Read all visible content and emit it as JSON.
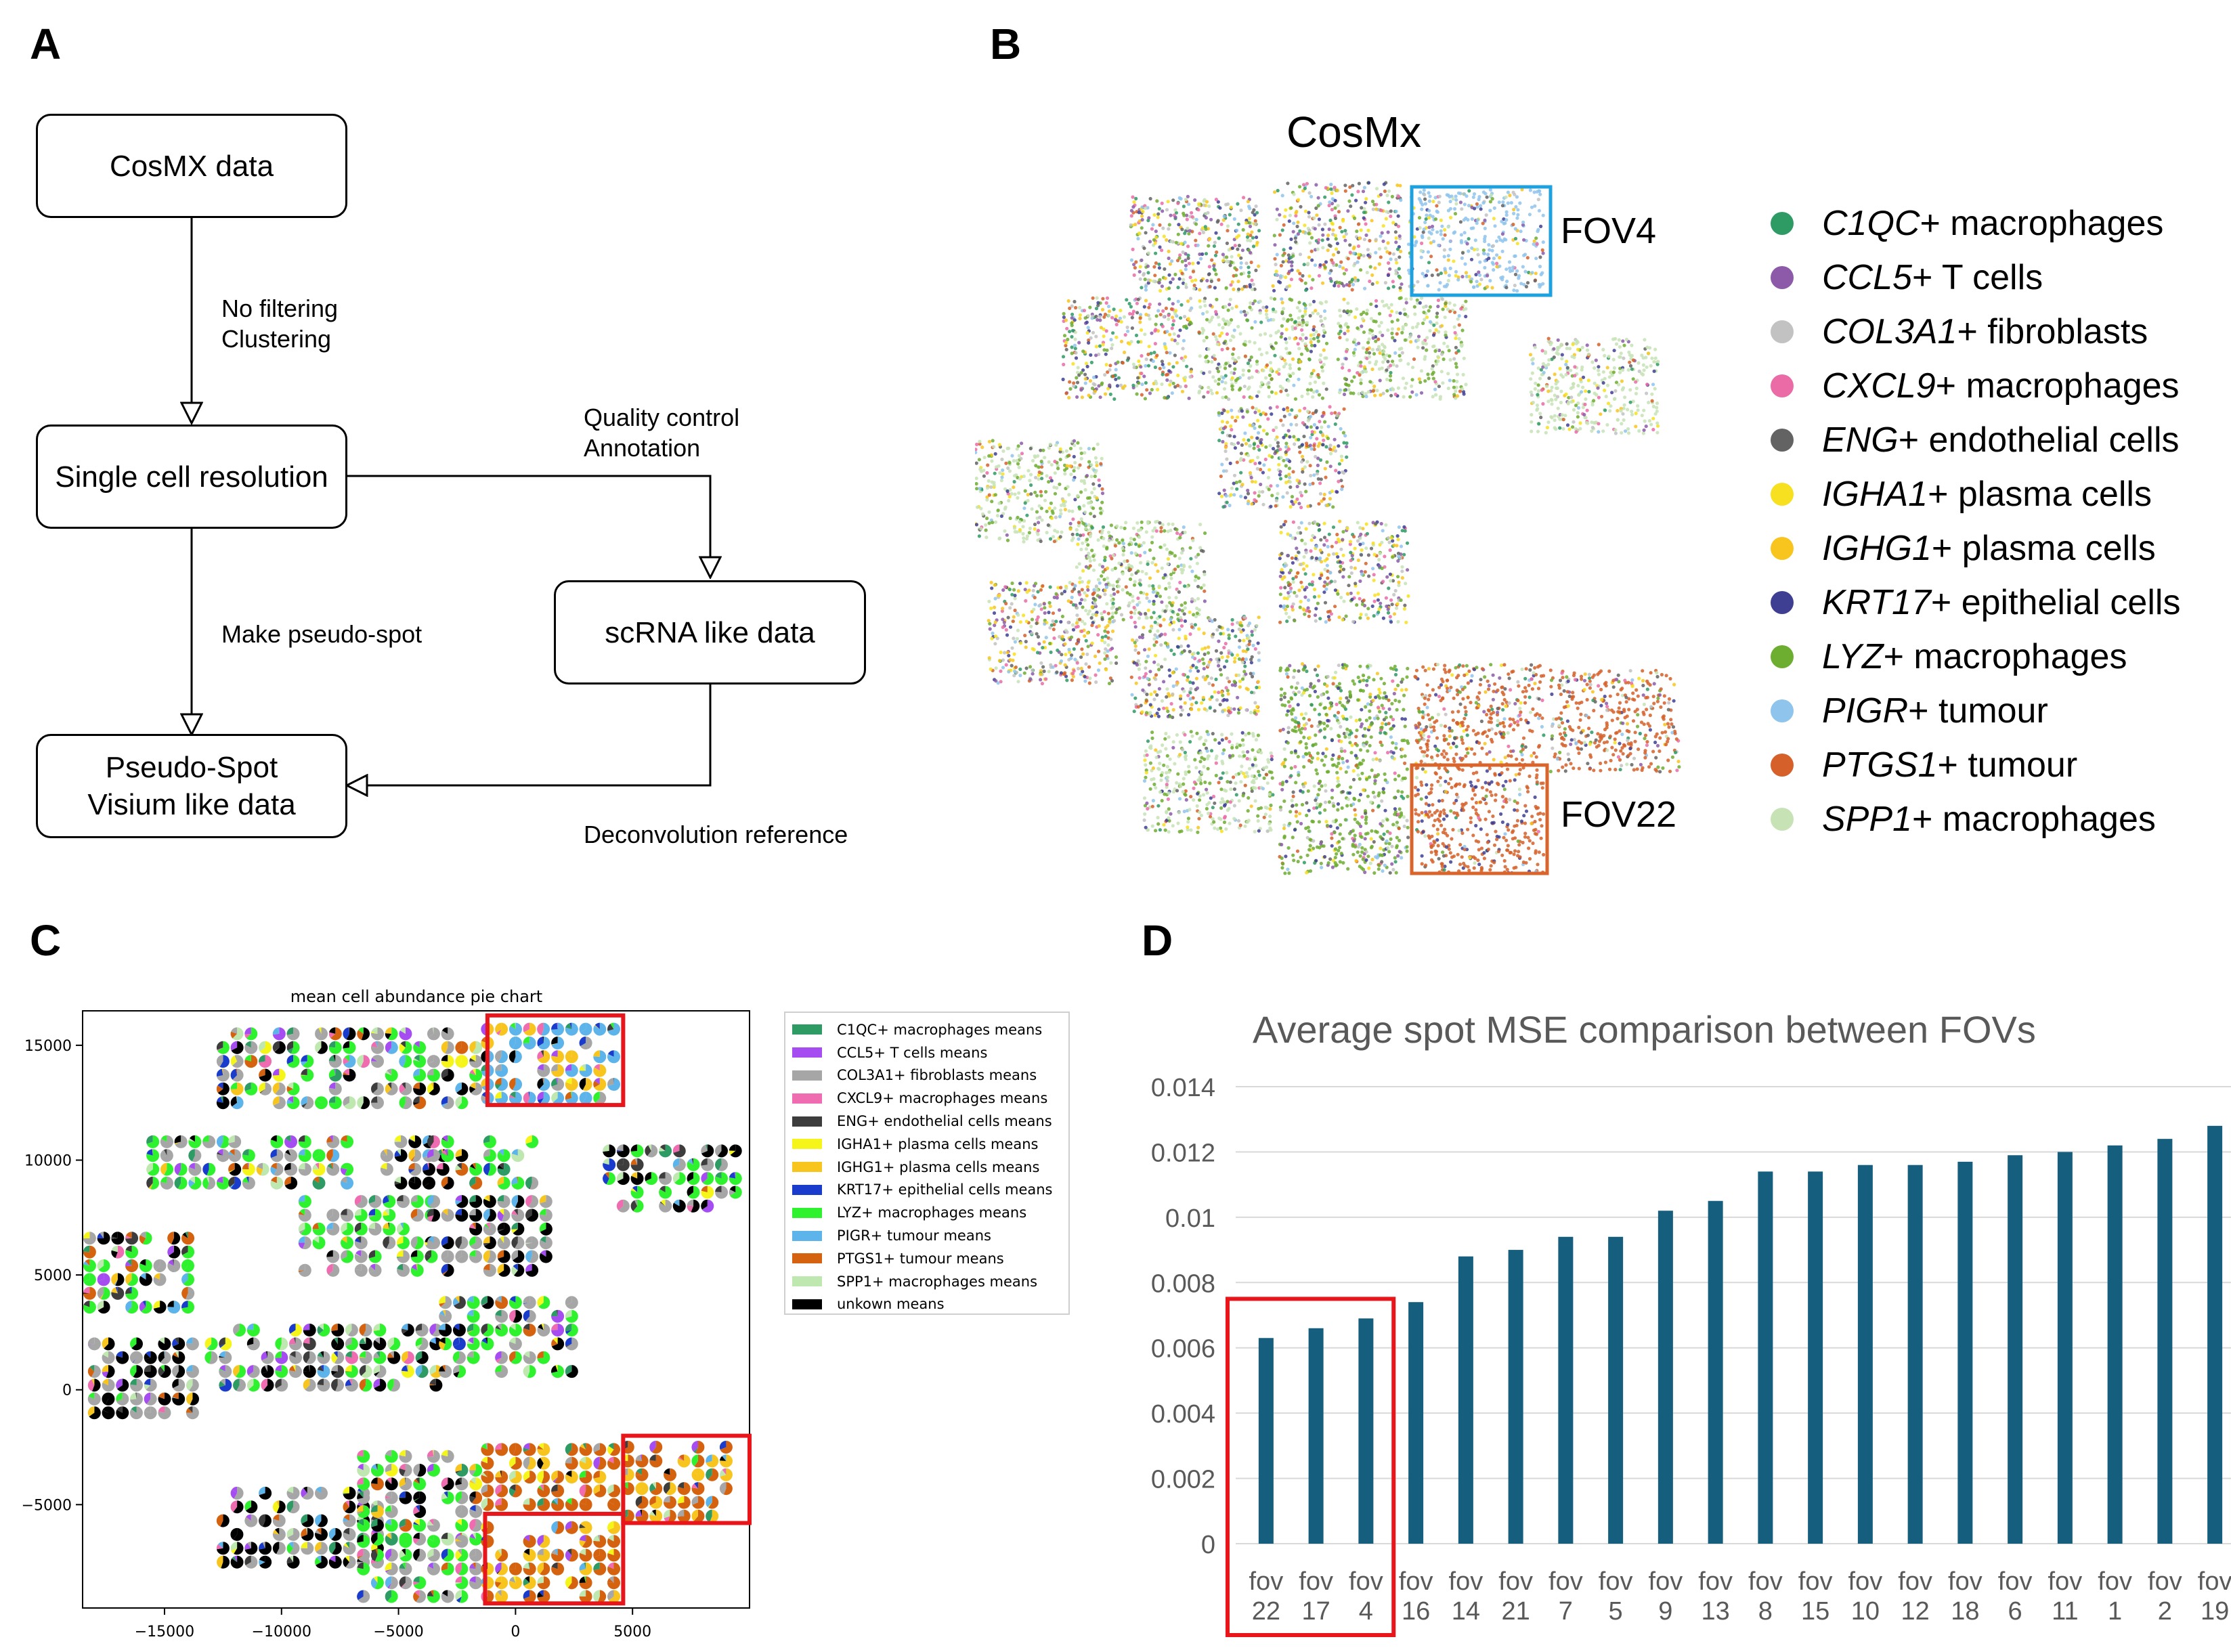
{
  "panels": {
    "a": "A",
    "b": "B",
    "c": "C",
    "d": "D"
  },
  "flowchart": {
    "box_cosmx": "CosMX data",
    "box_single_cell": "Single cell resolution",
    "box_scrna": "scRNA like data",
    "box_pseudo_line1": "Pseudo-Spot",
    "box_pseudo_line2": "Visium like data",
    "label_no_filtering": "No filtering",
    "label_clustering": "Clustering",
    "label_quality_control": "Quality control",
    "label_annotation": "Annotation",
    "label_make_pseudo_spot": "Make pseudo-spot",
    "label_deconvolution": "Deconvolution reference"
  },
  "panel_b": {
    "title": "CosMx",
    "fov4_label": "FOV4",
    "fov22_label": "FOV22",
    "fov4_box_color": "#1ea1df",
    "fov22_box_color": "#d9652c",
    "legend": [
      {
        "gene": "C1QC",
        "rest": "+ macrophages",
        "color": "#2e9a64"
      },
      {
        "gene": "CCL5",
        "rest": "+ T cells",
        "color": "#8c5aa8"
      },
      {
        "gene": "COL3A1",
        "rest": "+ fibroblasts",
        "color": "#c2c2c2"
      },
      {
        "gene": "CXCL9",
        "rest": "+ macrophages",
        "color": "#ea6ba6"
      },
      {
        "gene": "ENG",
        "rest": "+ endothelial cells",
        "color": "#636363"
      },
      {
        "gene": "IGHA1",
        "rest": "+ plasma cells",
        "color": "#f7e01f"
      },
      {
        "gene": "IGHG1",
        "rest": "+ plasma cells",
        "color": "#f7c51e"
      },
      {
        "gene": "KRT17",
        "rest": "+ epithelial cells",
        "color": "#3e3f93"
      },
      {
        "gene": "LYZ",
        "rest": "+ macrophages",
        "color": "#6dad2f"
      },
      {
        "gene": "PIGR",
        "rest": "+ tumour",
        "color": "#8fc4ec"
      },
      {
        "gene": "PTGS1",
        "rest": "+ tumour",
        "color": "#d5602a"
      },
      {
        "gene": "SPP1",
        "rest": "+ macrophages",
        "color": "#c7e3b6"
      }
    ]
  },
  "panel_c": {
    "title": "mean cell abundance pie chart",
    "highlight_color": "#e8161b",
    "x_ticks": [
      "−15000",
      "−10000",
      "−5000",
      "0",
      "5000"
    ],
    "y_ticks": [
      "15000",
      "10000",
      "5000",
      "0",
      "−5000"
    ],
    "legend": [
      {
        "label": "C1QC+ macrophages means",
        "color": "#2e9a64"
      },
      {
        "label": "CCL5+ T cells means",
        "color": "#a64df2"
      },
      {
        "label": "COL3A1+ fibroblasts means",
        "color": "#a6a6a6"
      },
      {
        "label": "CXCL9+ macrophages means",
        "color": "#f06cb0"
      },
      {
        "label": "ENG+ endothelial cells means",
        "color": "#3d3d3d"
      },
      {
        "label": "IGHA1+ plasma cells means",
        "color": "#f5f51a"
      },
      {
        "label": "IGHG1+ plasma cells means",
        "color": "#f7c51e"
      },
      {
        "label": "KRT17+ epithelial cells means",
        "color": "#1a3ccc"
      },
      {
        "label": "LYZ+ macrophages means",
        "color": "#2ef22e"
      },
      {
        "label": "PIGR+ tumour means",
        "color": "#5db4ea"
      },
      {
        "label": "PTGS1+ tumour means",
        "color": "#d5620f"
      },
      {
        "label": "SPP1+ macrophages means",
        "color": "#bfe8b0"
      },
      {
        "label": "unkown means",
        "color": "#000000"
      }
    ]
  },
  "chart_data": {
    "type": "bar",
    "title": "Average spot MSE comparison between FOVs",
    "xlabel": "",
    "ylabel": "",
    "categories": [
      "fov 22",
      "fov 17",
      "fov 4",
      "fov 16",
      "fov 14",
      "fov 21",
      "fov 7",
      "fov 5",
      "fov 9",
      "fov 13",
      "fov 8",
      "fov 15",
      "fov 10",
      "fov 12",
      "fov 18",
      "fov 6",
      "fov 11",
      "fov 1",
      "fov 2",
      "fov 19"
    ],
    "values": [
      0.0063,
      0.0066,
      0.0069,
      0.0074,
      0.0088,
      0.009,
      0.0094,
      0.0094,
      0.0102,
      0.0105,
      0.0114,
      0.0114,
      0.0116,
      0.0116,
      0.0117,
      0.0119,
      0.012,
      0.0122,
      0.0124,
      0.0128
    ],
    "ylim": [
      0,
      0.014
    ],
    "y_ticks": [
      "0",
      "0.002",
      "0.004",
      "0.006",
      "0.008",
      "0.01",
      "0.012",
      "0.014"
    ],
    "grid": true,
    "bar_color": "#165e7d",
    "highlight": [
      "fov 22",
      "fov 17",
      "fov 4"
    ],
    "highlight_color": "#e8161b"
  }
}
